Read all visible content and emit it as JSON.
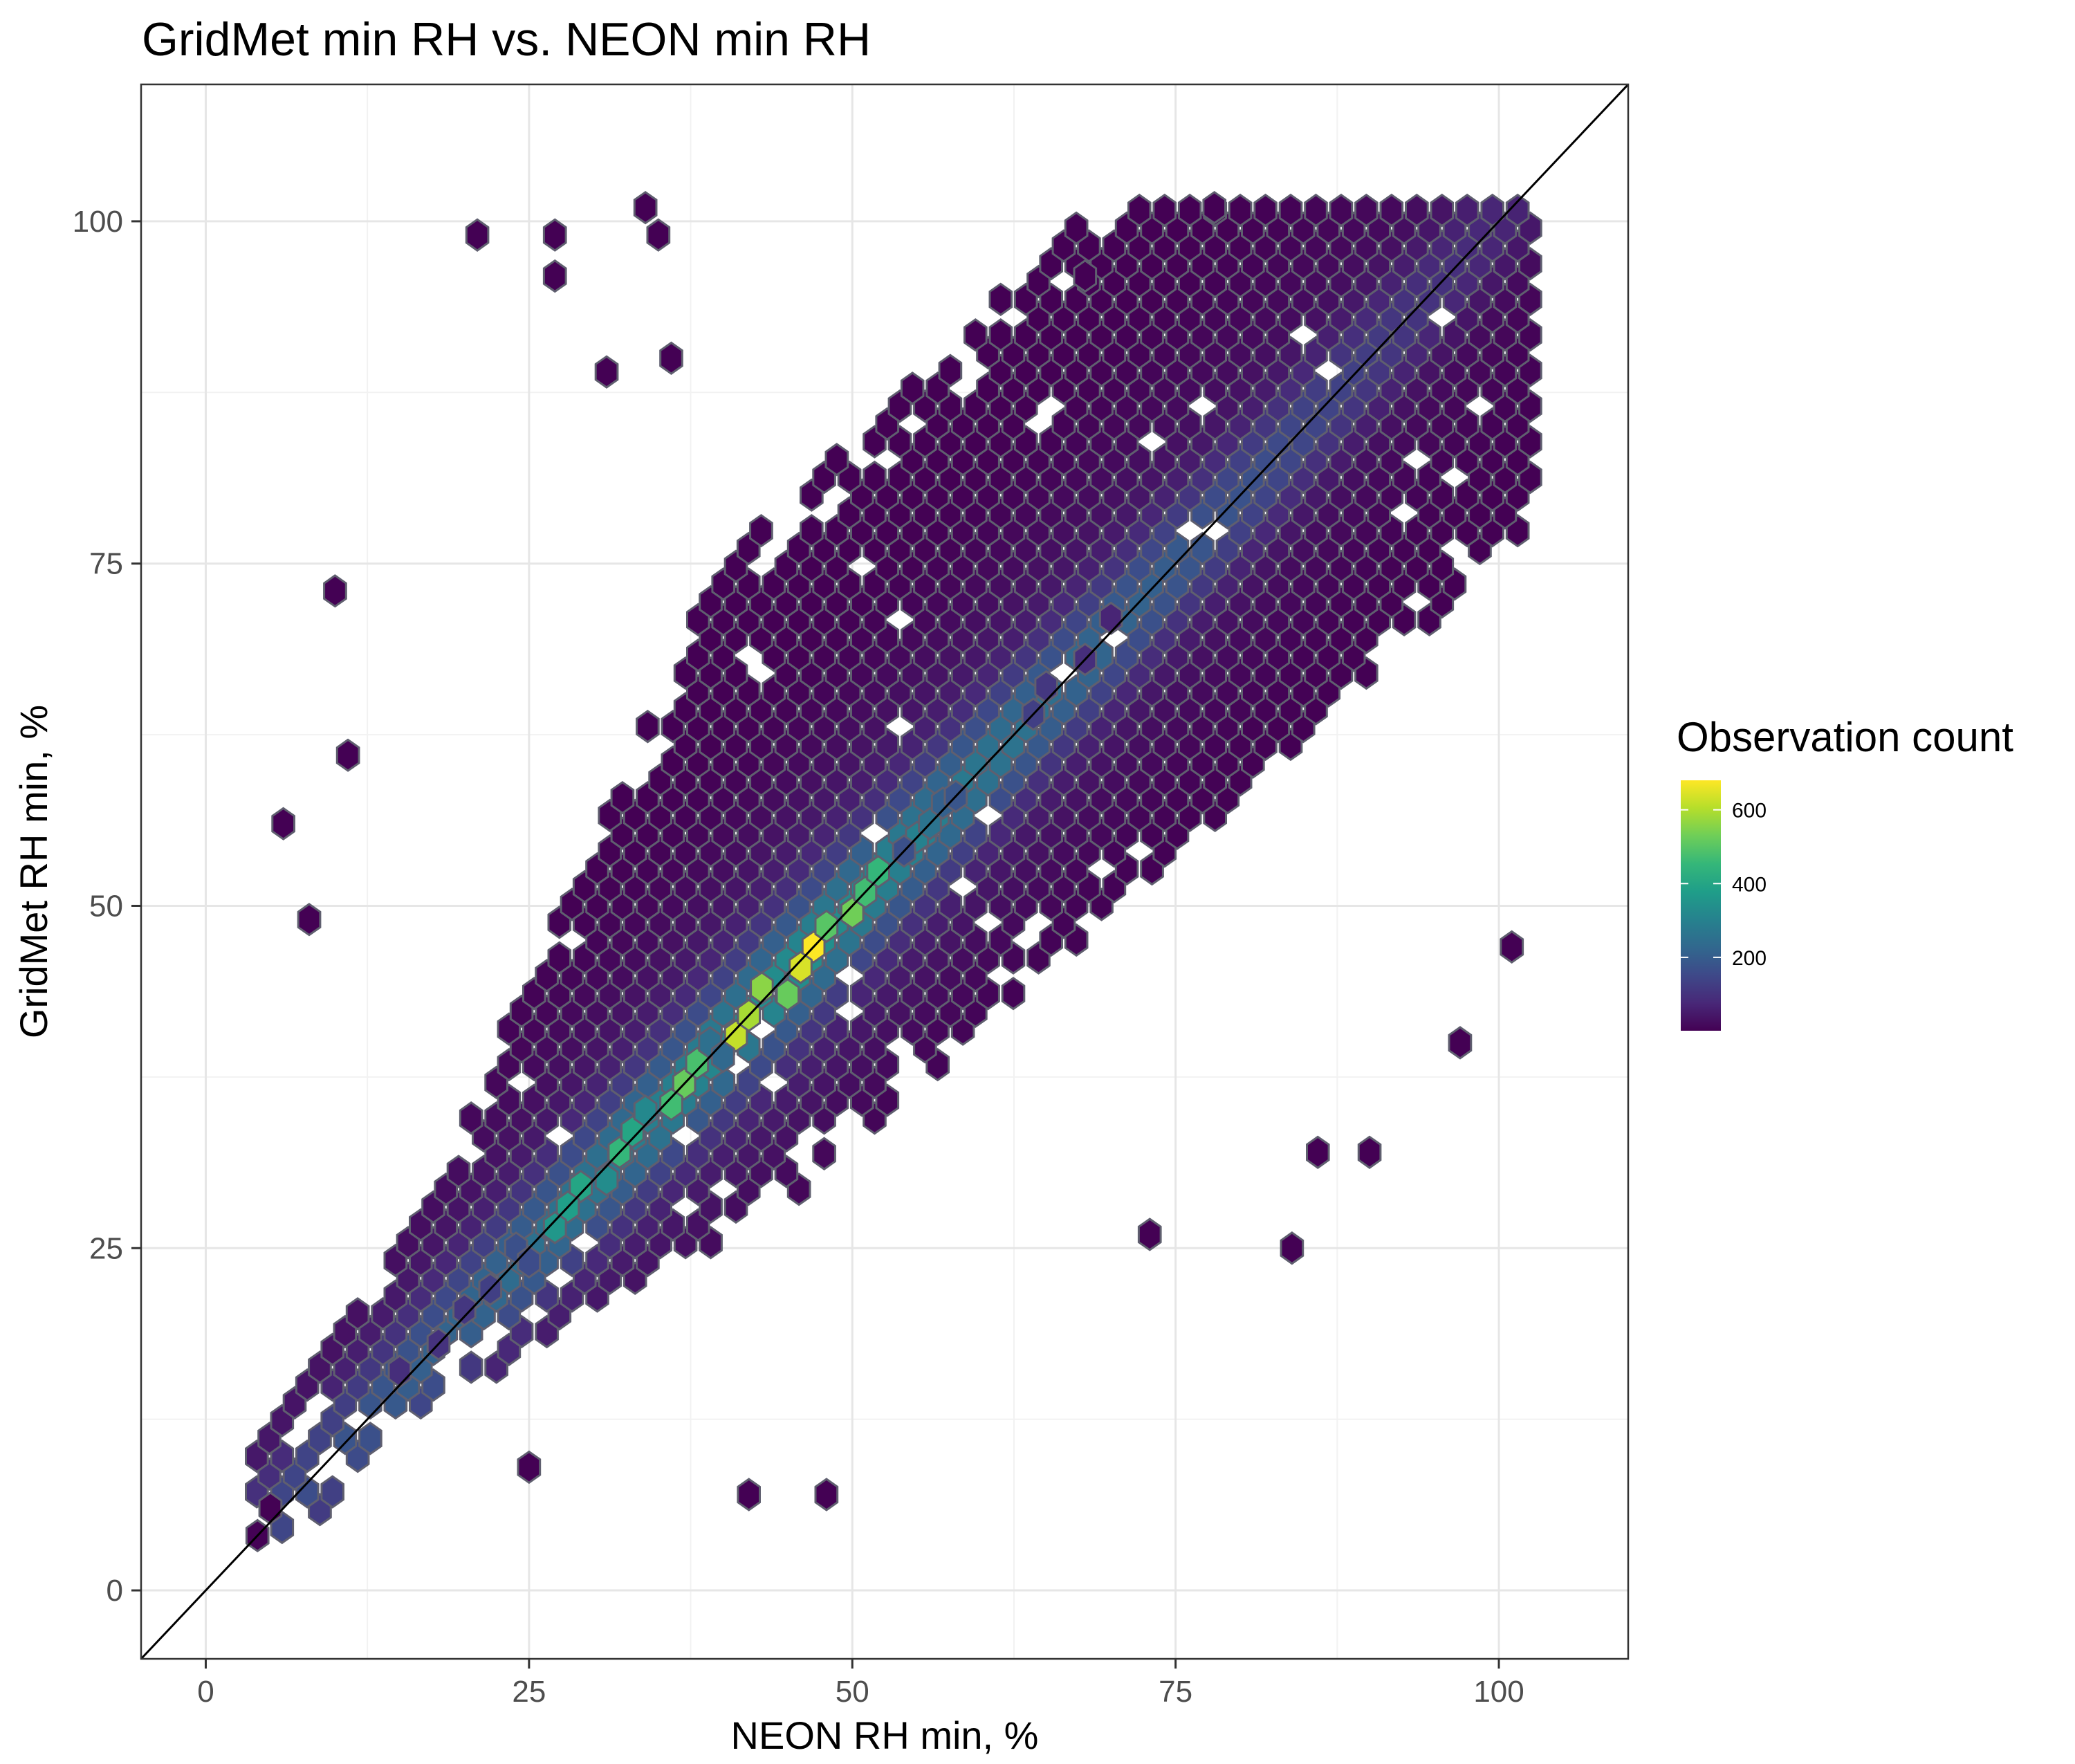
{
  "chart_data": {
    "type": "heatmap",
    "subtype": "hexbin",
    "title": "GridMet min RH vs. NEON min RH",
    "xlabel": "NEON RH min, %",
    "ylabel": "GridMet RH min, %",
    "xlim": [
      -5,
      110
    ],
    "ylim": [
      -5,
      110
    ],
    "x_ticks": [
      0,
      25,
      50,
      75,
      100
    ],
    "y_ticks": [
      0,
      25,
      50,
      75,
      100
    ],
    "grid": true,
    "reference_line": "1:1 identity line (y = x)",
    "hex_edge_color": "#5f5f6f",
    "legend": {
      "title": "Observation count",
      "position": "right",
      "ticks": [
        200,
        400,
        600
      ],
      "range": [
        1,
        680
      ],
      "colormap": "viridis"
    },
    "density_summary": "Observations cluster tightly along the 1:1 line; peak counts (~600-680) occur near x = 40-48, y = 40-48; sparse scatter extends to GridMet 100% across NEON 20-100%.",
    "high_count_bins": [
      {
        "x": 47,
        "y": 47,
        "count": 680
      },
      {
        "x": 46,
        "y": 45.5,
        "count": 640
      },
      {
        "x": 41,
        "y": 40.5,
        "count": 620
      },
      {
        "x": 42,
        "y": 42,
        "count": 590
      },
      {
        "x": 43,
        "y": 44,
        "count": 560
      },
      {
        "x": 45,
        "y": 43.5,
        "count": 520
      },
      {
        "x": 48,
        "y": 48.5,
        "count": 500
      },
      {
        "x": 50,
        "y": 49.5,
        "count": 530
      },
      {
        "x": 51,
        "y": 51,
        "count": 470
      },
      {
        "x": 52,
        "y": 52.5,
        "count": 450
      },
      {
        "x": 37,
        "y": 37,
        "count": 520
      },
      {
        "x": 38,
        "y": 38.5,
        "count": 480
      },
      {
        "x": 36,
        "y": 35.5,
        "count": 470
      },
      {
        "x": 32,
        "y": 32,
        "count": 450
      },
      {
        "x": 33,
        "y": 33.5,
        "count": 400
      },
      {
        "x": 29,
        "y": 29.5,
        "count": 400
      },
      {
        "x": 28,
        "y": 28,
        "count": 380
      },
      {
        "x": 27,
        "y": 26.5,
        "count": 360
      },
      {
        "x": 31,
        "y": 30,
        "count": 330
      },
      {
        "x": 34,
        "y": 35,
        "count": 320
      },
      {
        "x": 55,
        "y": 55,
        "count": 300
      },
      {
        "x": 56,
        "y": 56,
        "count": 260
      },
      {
        "x": 39,
        "y": 40,
        "count": 250
      },
      {
        "x": 40,
        "y": 39,
        "count": 230
      },
      {
        "x": 57,
        "y": 57.5,
        "count": 210
      },
      {
        "x": 58,
        "y": 58,
        "count": 180
      },
      {
        "x": 54,
        "y": 54,
        "count": 170
      },
      {
        "x": 24,
        "y": 25,
        "count": 170
      },
      {
        "x": 25,
        "y": 24,
        "count": 160
      },
      {
        "x": 22,
        "y": 22,
        "count": 130
      },
      {
        "x": 64,
        "y": 64,
        "count": 130
      },
      {
        "x": 65,
        "y": 66,
        "count": 110
      },
      {
        "x": 20,
        "y": 20.5,
        "count": 110
      },
      {
        "x": 18,
        "y": 18,
        "count": 100
      },
      {
        "x": 15,
        "y": 16,
        "count": 90
      },
      {
        "x": 68,
        "y": 68,
        "count": 90
      },
      {
        "x": 70,
        "y": 71,
        "count": 70
      }
    ],
    "isolated_bins": [
      {
        "x": 4,
        "y": 4,
        "count": 3
      },
      {
        "x": 5,
        "y": 6,
        "count": 2
      },
      {
        "x": 6,
        "y": 56,
        "count": 1
      },
      {
        "x": 8,
        "y": 49,
        "count": 1
      },
      {
        "x": 10,
        "y": 73,
        "count": 1
      },
      {
        "x": 11,
        "y": 61,
        "count": 1
      },
      {
        "x": 21,
        "y": 99,
        "count": 1
      },
      {
        "x": 27,
        "y": 99,
        "count": 1
      },
      {
        "x": 27,
        "y": 96,
        "count": 1
      },
      {
        "x": 34,
        "y": 101,
        "count": 1
      },
      {
        "x": 35,
        "y": 99,
        "count": 1
      },
      {
        "x": 36,
        "y": 90,
        "count": 1
      },
      {
        "x": 31,
        "y": 89,
        "count": 1
      },
      {
        "x": 25,
        "y": 9,
        "count": 1
      },
      {
        "x": 42,
        "y": 7,
        "count": 1
      },
      {
        "x": 48,
        "y": 7,
        "count": 1
      },
      {
        "x": 73,
        "y": 26,
        "count": 1
      },
      {
        "x": 84,
        "y": 25,
        "count": 1
      },
      {
        "x": 90,
        "y": 32,
        "count": 1
      },
      {
        "x": 86,
        "y": 32,
        "count": 1
      },
      {
        "x": 97,
        "y": 40,
        "count": 1
      },
      {
        "x": 101,
        "y": 47,
        "count": 1
      },
      {
        "x": 78,
        "y": 101,
        "count": 1
      },
      {
        "x": 68,
        "y": 96,
        "count": 1
      }
    ]
  }
}
